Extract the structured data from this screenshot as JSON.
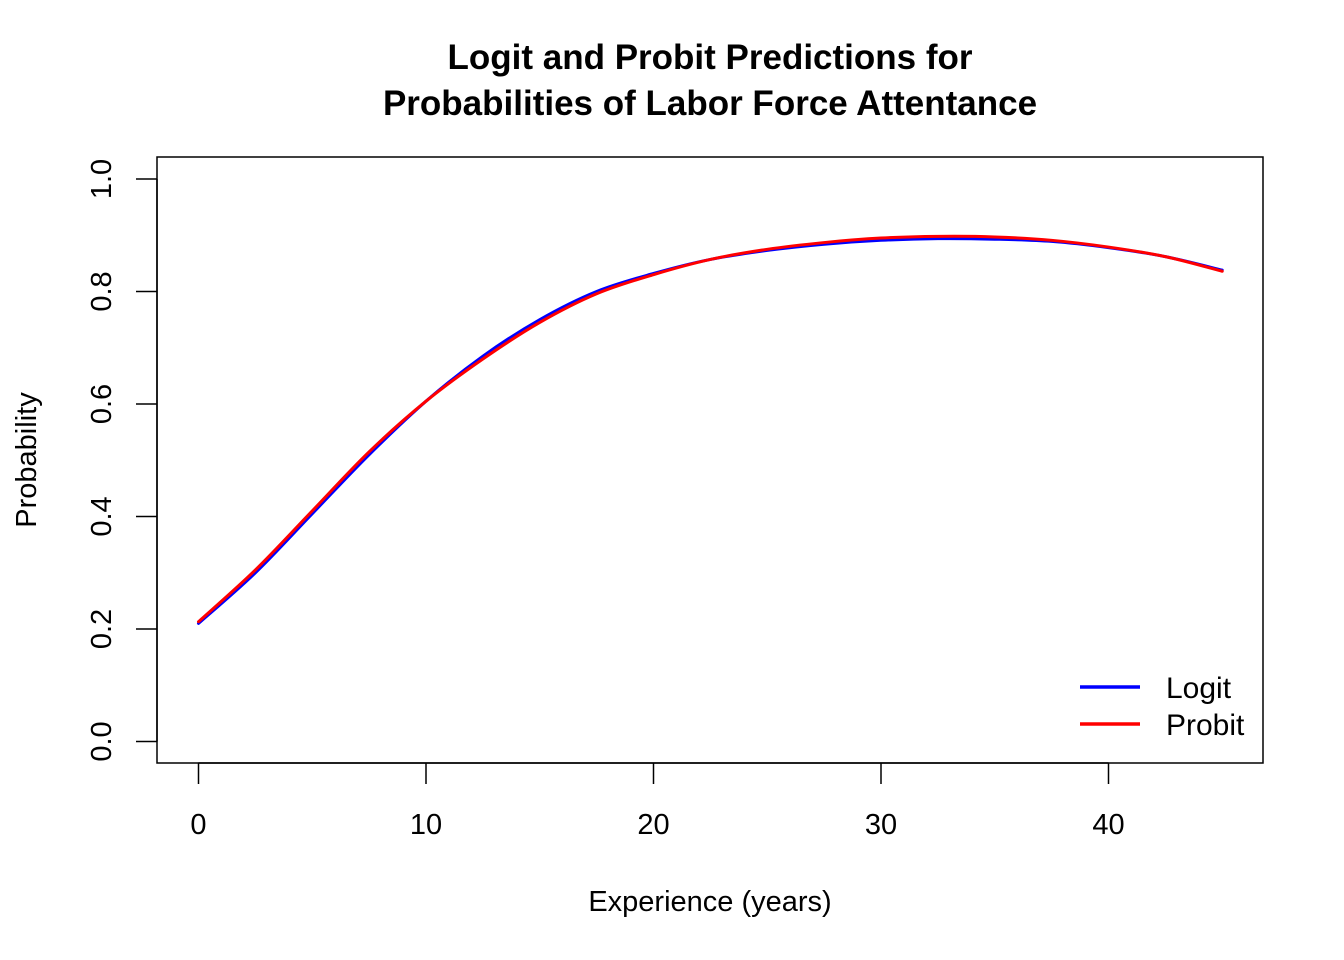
{
  "chart_data": {
    "type": "line",
    "title": [
      "Logit and Probit Predictions for",
      "Probabilities of Labor Force Attentance"
    ],
    "xlabel": "Experience (years)",
    "ylabel": "Probability",
    "xlim": [
      0,
      45
    ],
    "ylim": [
      0,
      1
    ],
    "x_ticks": [
      0,
      10,
      20,
      30,
      40
    ],
    "y_ticks": [
      0.0,
      0.2,
      0.4,
      0.6,
      0.8,
      1.0
    ],
    "x_tick_labels": [
      "0",
      "10",
      "20",
      "30",
      "40"
    ],
    "y_tick_labels": [
      "0.0",
      "0.2",
      "0.4",
      "0.6",
      "0.8",
      "1.0"
    ],
    "grid": false,
    "legend_position": "bottom-right",
    "x": [
      0,
      2.5,
      5,
      7.5,
      10,
      12.5,
      15,
      17.5,
      20,
      22.5,
      25,
      27.5,
      30,
      32.5,
      35,
      37.5,
      40,
      42.5,
      45
    ],
    "series": [
      {
        "name": "Logit",
        "color": "#0000FF",
        "values": [
          0.21,
          0.3,
          0.405,
          0.51,
          0.605,
          0.685,
          0.75,
          0.8,
          0.832,
          0.857,
          0.873,
          0.884,
          0.891,
          0.894,
          0.893,
          0.889,
          0.878,
          0.862,
          0.838
        ]
      },
      {
        "name": "Probit",
        "color": "#FF0000",
        "values": [
          0.213,
          0.305,
          0.41,
          0.515,
          0.605,
          0.68,
          0.745,
          0.796,
          0.83,
          0.857,
          0.875,
          0.887,
          0.895,
          0.898,
          0.897,
          0.891,
          0.879,
          0.862,
          0.836
        ]
      }
    ]
  }
}
